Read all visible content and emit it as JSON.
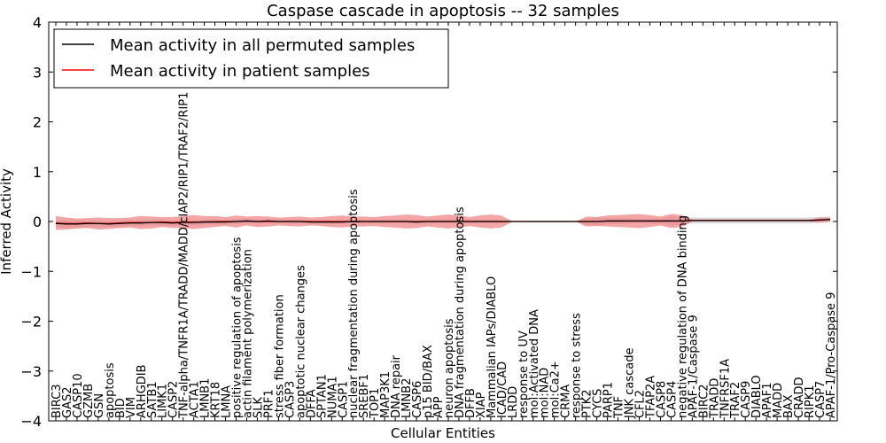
{
  "chart_data": {
    "type": "line",
    "title": "Caspase cascade in apoptosis -- 32 samples",
    "xlabel": "Cellular Entities",
    "ylabel": "Inferred Activity",
    "ylim": [
      -4,
      4
    ],
    "yticks": [
      -4,
      -3,
      -2,
      -1,
      0,
      1,
      2,
      3,
      4
    ],
    "ytick_labels": [
      "−4",
      "−3",
      "−2",
      "−1",
      "0",
      "1",
      "2",
      "3",
      "4"
    ],
    "grid": false,
    "legend_position": "top-left",
    "categories": [
      "BIRC3",
      "GAS2",
      "CASP10",
      "GZMB",
      "GSN",
      "apoptosis",
      "BID",
      "VIM",
      "ARHGDIB",
      "SATB1",
      "LIMK1",
      "CASP2",
      "TNF-alpha/TNFR1A/TRADD/MADD/cIAP2/RIP1/TRAF2/RIP1",
      "ACTA1",
      "LMNB1",
      "KRT18",
      "LMNA",
      "positive regulation of apoptosis",
      "actin filament polymerization",
      "SLK",
      "PRF1",
      "stress fiber formation",
      "CASP3",
      "apoptotic nuclear changes",
      "DFFA",
      "SPTAN1",
      "NUMA1",
      "CASP1",
      "nuclear fragmentation during apoptosis",
      "SREBF1",
      "TOP1",
      "MAP3K1",
      "DNA repair",
      "LMNB2",
      "CASP6",
      "p15 BID/BAX",
      "APP",
      "neuron apoptosis",
      "DNA fragmentation during apoptosis",
      "DFFB",
      "XIAP",
      "Mammalian IAPs/DIABLO",
      "ICAD/CAD",
      "LRDD",
      "response to UV",
      "mol:Activated DNA",
      "mol:NAD",
      "mol:Ca2+",
      "CRMA",
      "response to stress",
      "PTK2",
      "CYCS",
      "PARP1",
      "TNF",
      "JNK cascade",
      "CFL2",
      "TFAP2A",
      "CASP8",
      "CASP4",
      "negative regulation of DNA binding",
      "APAF-1/Caspase 9",
      "BIRC2",
      "TRADD",
      "TNFRSF1A",
      "TRAF2",
      "CASP9",
      "DIABLO",
      "APAF1",
      "MADD",
      "BAX",
      "CRADD",
      "RIPK1",
      "CASP7",
      "APAF-1/Pro-Caspase 9"
    ],
    "series": [
      {
        "name": "Mean activity in all permuted samples",
        "color": "#000000",
        "values": [
          -0.04,
          -0.05,
          -0.05,
          -0.04,
          -0.04,
          -0.05,
          -0.04,
          -0.03,
          -0.03,
          -0.02,
          -0.02,
          -0.03,
          -0.02,
          -0.02,
          -0.01,
          -0.01,
          -0.01,
          0.0,
          0.01,
          0.0,
          0.01,
          0.0,
          0.0,
          0.0,
          -0.01,
          -0.01,
          -0.01,
          -0.01,
          0.0,
          0.0,
          0.0,
          0.0,
          0.0,
          0.0,
          -0.01,
          0.0,
          0.0,
          0.0,
          0.0,
          0.0,
          0.0,
          0.0,
          0.0,
          0.0,
          0.0,
          0.0,
          0.0,
          0.0,
          0.0,
          0.0,
          0.0,
          0.0,
          0.01,
          0.01,
          0.01,
          0.01,
          0.01,
          0.01,
          0.01,
          0.01,
          0.02,
          0.02,
          0.02,
          0.02,
          0.02,
          0.02,
          0.02,
          0.02,
          0.02,
          0.02,
          0.02,
          0.02,
          0.03,
          0.04
        ],
        "band": [
          0.06,
          0.08,
          0.08,
          0.07,
          0.06,
          0.06,
          0.07,
          0.06,
          0.06,
          0.06,
          0.06,
          0.06,
          0.05,
          0.05,
          0.05,
          0.05,
          0.05,
          0.05,
          0.05,
          0.04,
          0.04,
          0.04,
          0.04,
          0.04,
          0.04,
          0.04,
          0.04,
          0.04,
          0.04,
          0.04,
          0.04,
          0.04,
          0.04,
          0.04,
          0.04,
          0.04,
          0.04,
          0.04,
          0.04,
          0.04,
          0.04,
          0.04,
          0.03,
          0.01,
          0.0,
          0.0,
          0.0,
          0.0,
          0.0,
          0.0,
          0.06,
          0.08,
          0.06,
          0.06,
          0.05,
          0.05,
          0.05,
          0.05,
          0.1,
          0.07,
          0.06,
          0.06,
          0.06,
          0.06,
          0.06,
          0.06,
          0.06,
          0.06,
          0.06,
          0.06,
          0.06,
          0.06,
          0.06,
          0.06
        ]
      },
      {
        "name": "Mean activity in patient samples",
        "color": "#ff0000",
        "values": [
          -0.03,
          -0.04,
          -0.04,
          -0.03,
          -0.04,
          -0.04,
          -0.03,
          -0.02,
          -0.02,
          -0.02,
          -0.01,
          -0.02,
          -0.01,
          -0.01,
          -0.01,
          0.0,
          0.0,
          0.0,
          0.01,
          0.0,
          0.0,
          0.0,
          0.0,
          0.0,
          0.0,
          0.0,
          0.0,
          0.0,
          0.0,
          0.0,
          0.0,
          0.0,
          0.0,
          0.0,
          0.0,
          0.0,
          0.0,
          0.0,
          0.0,
          0.0,
          0.0,
          0.0,
          0.0,
          0.0,
          0.0,
          0.0,
          0.0,
          0.0,
          0.0,
          0.0,
          0.0,
          0.0,
          0.01,
          0.01,
          0.01,
          0.01,
          0.01,
          0.01,
          0.01,
          0.01,
          0.02,
          0.02,
          0.02,
          0.02,
          0.02,
          0.02,
          0.02,
          0.02,
          0.02,
          0.02,
          0.02,
          0.02,
          0.03,
          0.04
        ],
        "band": [
          0.14,
          0.12,
          0.1,
          0.1,
          0.12,
          0.11,
          0.1,
          0.1,
          0.13,
          0.12,
          0.1,
          0.11,
          0.12,
          0.14,
          0.12,
          0.11,
          0.09,
          0.12,
          0.09,
          0.11,
          0.1,
          0.08,
          0.09,
          0.1,
          0.08,
          0.09,
          0.11,
          0.12,
          0.1,
          0.1,
          0.09,
          0.11,
          0.12,
          0.14,
          0.13,
          0.1,
          0.12,
          0.14,
          0.12,
          0.09,
          0.12,
          0.14,
          0.12,
          0.01,
          0.0,
          0.0,
          0.0,
          0.0,
          0.0,
          0.0,
          0.1,
          0.09,
          0.11,
          0.12,
          0.13,
          0.14,
          0.12,
          0.09,
          0.14,
          0.12,
          0.02,
          0.02,
          0.02,
          0.02,
          0.02,
          0.02,
          0.02,
          0.02,
          0.02,
          0.02,
          0.02,
          0.02,
          0.05,
          0.04
        ]
      }
    ]
  }
}
